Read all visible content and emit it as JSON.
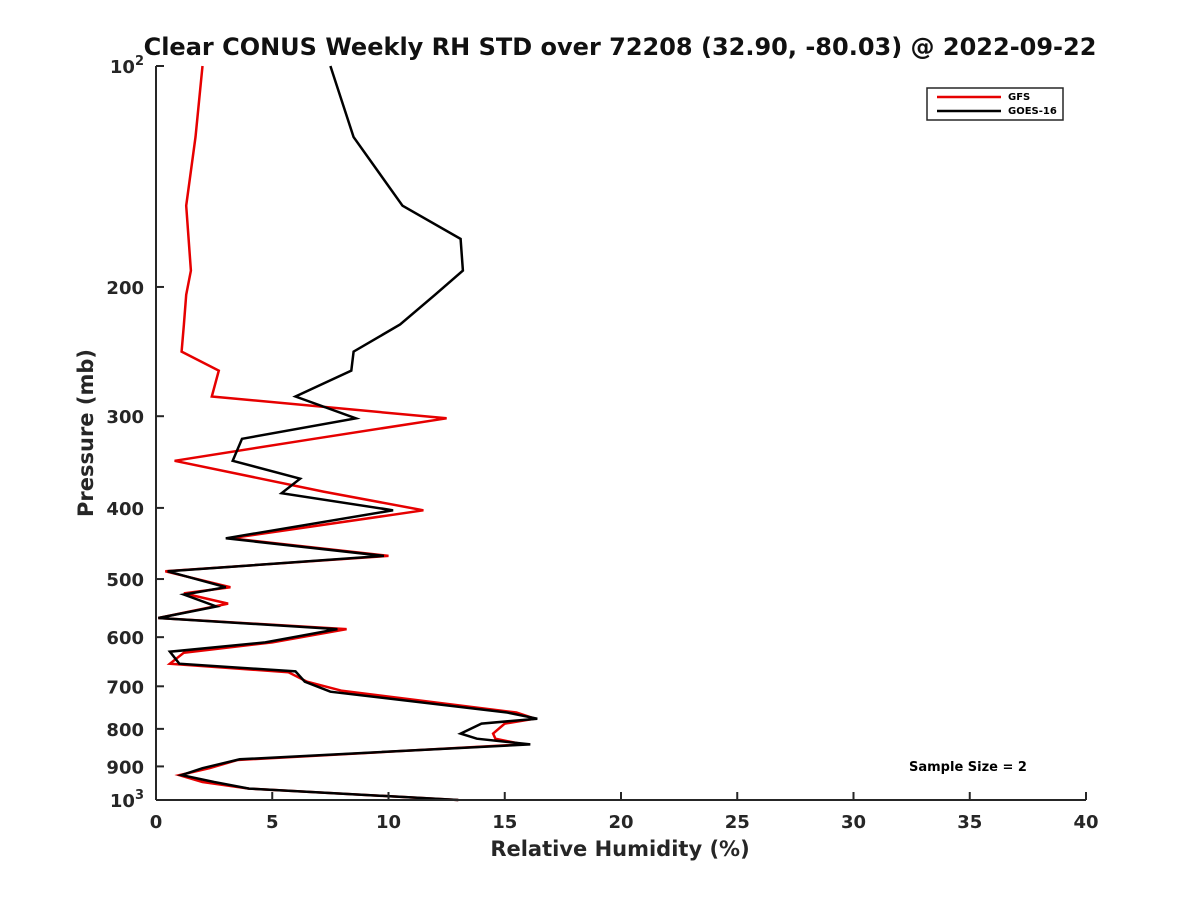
{
  "chart_data": {
    "type": "line",
    "title": "Clear CONUS Weekly RH STD over 72208 (32.90, -80.03) @ 2022-09-22",
    "xlabel": "Relative Humidity (%)",
    "ylabel": "Pressure (mb)",
    "xlim": [
      0,
      40
    ],
    "ylim": [
      100,
      1000
    ],
    "y_scale": "log",
    "y_reversed": true,
    "x_ticks": [
      "0",
      "5",
      "10",
      "15",
      "20",
      "25",
      "30",
      "35",
      "40"
    ],
    "y_ticks": [
      {
        "value": 100,
        "base": "10",
        "exp": "2"
      },
      {
        "value": 200,
        "base": "200",
        "exp": ""
      },
      {
        "value": 300,
        "base": "300",
        "exp": ""
      },
      {
        "value": 400,
        "base": "400",
        "exp": ""
      },
      {
        "value": 500,
        "base": "500",
        "exp": ""
      },
      {
        "value": 600,
        "base": "600",
        "exp": ""
      },
      {
        "value": 700,
        "base": "700",
        "exp": ""
      },
      {
        "value": 800,
        "base": "800",
        "exp": ""
      },
      {
        "value": 900,
        "base": "900",
        "exp": ""
      },
      {
        "value": 1000,
        "base": "10",
        "exp": "3"
      }
    ],
    "grid": false,
    "legend_position": "top-right",
    "annotation": "Sample Size = 2",
    "series": [
      {
        "name": "GFS",
        "color": "#e60000",
        "x": [
          2.0,
          1.7,
          1.3,
          1.5,
          1.3,
          1.2,
          1.1,
          2.7,
          2.4,
          12.5,
          6.8,
          0.8,
          7.2,
          11.5,
          3.2,
          10.0,
          0.4,
          3.2,
          1.2,
          3.1,
          0.1,
          8.2,
          5.0,
          1.2,
          0.6,
          5.7,
          6.5,
          8.0,
          15.5,
          16.3,
          15.0,
          14.5,
          14.6,
          15.8,
          3.5,
          2.3,
          1.0,
          2.0,
          4.0,
          13.0
        ],
        "y": [
          100,
          125,
          155,
          190,
          205,
          225,
          245,
          260,
          282,
          302,
          322,
          345,
          380,
          403,
          440,
          465,
          488,
          513,
          523,
          540,
          565,
          585,
          610,
          630,
          652,
          670,
          690,
          710,
          760,
          775,
          787,
          812,
          825,
          840,
          882,
          905,
          925,
          945,
          965,
          1000
        ]
      },
      {
        "name": "GOES-16",
        "color": "#000000",
        "x": [
          7.5,
          8.5,
          10.6,
          13.1,
          13.2,
          12.0,
          10.5,
          8.5,
          8.4,
          6.0,
          8.6,
          3.7,
          3.3,
          6.2,
          5.4,
          10.2,
          3.0,
          9.8,
          0.5,
          3.0,
          1.2,
          2.6,
          0.1,
          7.8,
          4.7,
          0.6,
          1.0,
          6.0,
          6.4,
          7.5,
          15.1,
          16.4,
          14.0,
          13.1,
          13.8,
          16.1,
          3.6,
          2.0,
          1.1,
          2.5,
          4.0,
          13.0
        ],
        "y": [
          100,
          125,
          155,
          172,
          190,
          205,
          225,
          245,
          260,
          282,
          302,
          322,
          345,
          365,
          382,
          403,
          440,
          465,
          488,
          513,
          525,
          545,
          565,
          585,
          610,
          628,
          652,
          668,
          690,
          712,
          760,
          775,
          787,
          812,
          825,
          840,
          880,
          905,
          925,
          945,
          965,
          1000
        ]
      }
    ]
  }
}
